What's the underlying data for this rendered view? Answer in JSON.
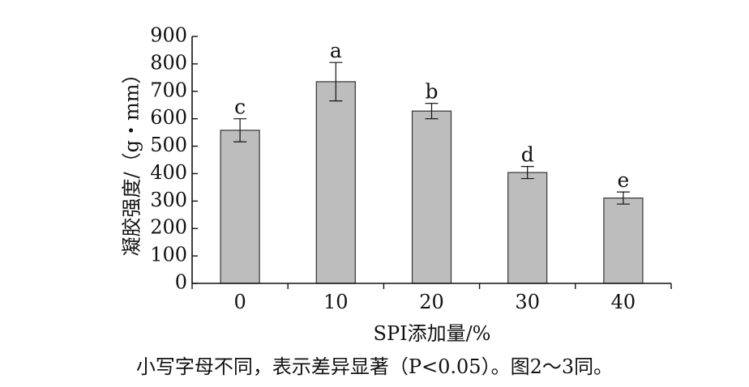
{
  "chart_data": {
    "type": "bar",
    "categories": [
      "0",
      "10",
      "20",
      "30",
      "40"
    ],
    "values": [
      558,
      735,
      628,
      404,
      311
    ],
    "errors": [
      42,
      70,
      28,
      22,
      22
    ],
    "significance_letters": [
      "c",
      "a",
      "b",
      "d",
      "e"
    ],
    "xlabel": "SPI添加量/%",
    "ylabel": "凝胶强度/（g・mm）",
    "ylim": [
      0,
      900
    ],
    "yticks": [
      0,
      100,
      200,
      300,
      400,
      500,
      600,
      700,
      800,
      900
    ],
    "grid": false,
    "legend": "none",
    "colors": {
      "bar_fill": "#bdbdbd",
      "bar_stroke": "#333333",
      "axis": "#111111"
    }
  },
  "caption": "小写字母不同，表示差异显著（P<0.05）。图2～3同。"
}
